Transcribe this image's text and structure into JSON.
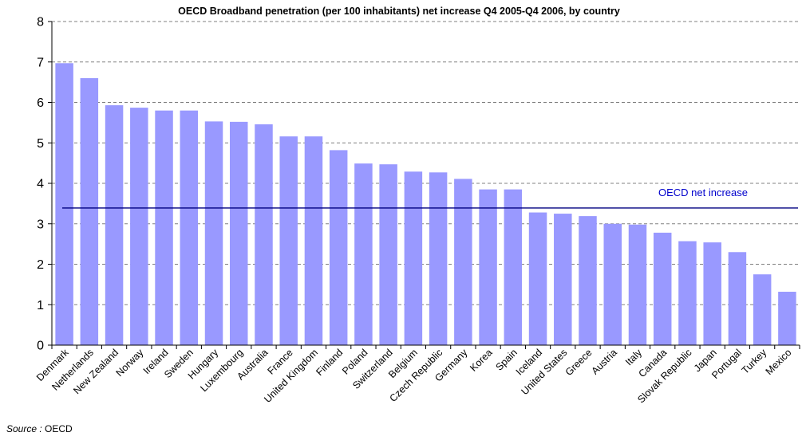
{
  "chart_data": {
    "type": "bar",
    "title": "OECD Broadband penetration (per 100 inhabitants) net increase Q4 2005-Q4 2006, by country",
    "xlabel": "",
    "ylabel": "",
    "ylim": [
      0,
      8
    ],
    "yticks": [
      0,
      1,
      2,
      3,
      4,
      5,
      6,
      7,
      8
    ],
    "grid": "horizontal dashed",
    "bar_color": "#9999ff",
    "categories": [
      "Denmark",
      "Netherlands",
      "New Zealand",
      "Norway",
      "Ireland",
      "Sweden",
      "Hungary",
      "Luxembourg",
      "Australia",
      "France",
      "United Kingdom",
      "Finland",
      "Poland",
      "Switzerland",
      "Belgium",
      "Czech Republic",
      "Germany",
      "Korea",
      "Spain",
      "Iceland",
      "United States",
      "Greece",
      "Austria",
      "Italy",
      "Canada",
      "Slovak Republic",
      "Japan",
      "Portugal",
      "Turkey",
      "Mexico"
    ],
    "values": [
      6.97,
      6.6,
      5.93,
      5.87,
      5.8,
      5.8,
      5.53,
      5.52,
      5.46,
      5.16,
      5.16,
      4.82,
      4.49,
      4.47,
      4.29,
      4.27,
      4.11,
      3.85,
      3.85,
      3.28,
      3.25,
      3.19,
      3.0,
      2.98,
      2.78,
      2.57,
      2.54,
      2.3,
      1.75,
      1.32
    ],
    "reference_line": {
      "label": "OECD net increase",
      "value": 3.39,
      "color": "#000080"
    }
  },
  "source": {
    "label": "Source :",
    "value": "OECD"
  }
}
